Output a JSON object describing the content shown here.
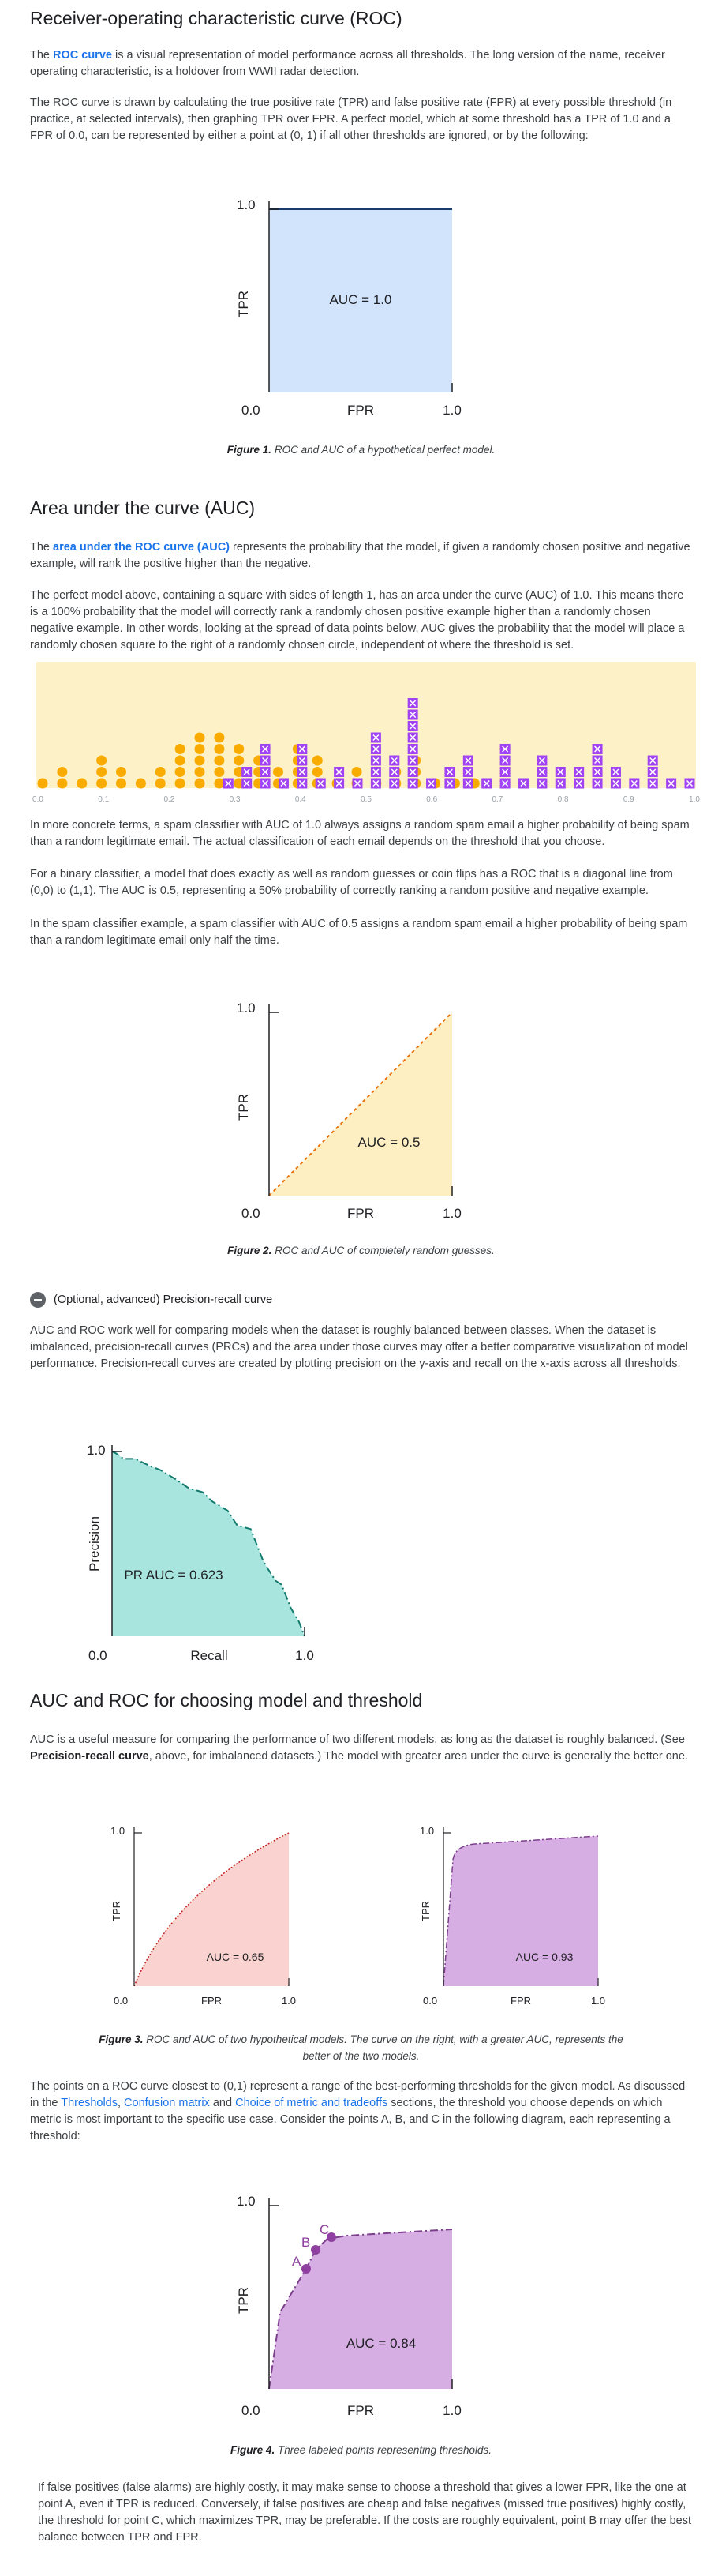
{
  "section_roc": {
    "heading": "Receiver-operating characteristic curve (ROC)",
    "p1_pre": "The ",
    "p1_link": "ROC curve",
    "p1_post": " is a visual representation of model performance across all thresholds. The long version of the name, receiver operating characteristic, is a holdover from WWII radar detection.",
    "p2": "The ROC curve is drawn by calculating the true positive rate (TPR) and false positive rate (FPR) at every possible threshold (in practice, at selected intervals), then graphing TPR over FPR. A perfect model, which at some threshold has a TPR of 1.0 and a FPR of 0.0, can be represented by either a point at (0, 1) if all other thresholds are ignored, or by the following:"
  },
  "figure1": {
    "caption_bold": "Figure 1.",
    "caption_text": " ROC and AUC of a hypothetical perfect model.",
    "ylabel": "TPR",
    "xlabel": "FPR",
    "y_top": "1.0",
    "origin": "0.0",
    "x_right": "1.0",
    "annotation": "AUC = 1.0",
    "fill": "#d2e3fc",
    "line": "#1a3b6e"
  },
  "section_auc": {
    "heading": "Area under the curve (AUC)",
    "p1_pre": "The ",
    "p1_link": "area under the ROC curve (AUC)",
    "p1_post": " represents the probability that the model, if given a randomly chosen positive and negative example, will rank the positive higher than the negative.",
    "p2": "The perfect model above, containing a square with sides of length 1, has an area under the curve (AUC) of 1.0. This means there is a 100% probability that the model will correctly rank a randomly chosen positive example higher than a randomly chosen negative example. In other words, looking at the spread of data points below, AUC gives the probability that the model will place a randomly chosen square to the right of a randomly chosen circle, independent of where the threshold is set.",
    "p3": "In more concrete terms, a spam classifier with AUC of 1.0 always assigns a random spam email a higher probability of being spam than a random legitimate email. The actual classification of each email depends on the threshold that you choose.",
    "p4": "For a binary classifier, a model that does exactly as well as random guesses or coin flips has a ROC that is a diagonal line from (0,0) to (1,1). The AUC is 0.5, representing a 50% probability of correctly ranking a random positive and negative example.",
    "p5": "In the spam classifier example, a spam classifier with AUC of 0.5 assigns a random spam email a higher probability of being spam than a random legitimate email only half the time."
  },
  "dotplot": {
    "ticks": [
      "0.0",
      "0.1",
      "0.2",
      "0.3",
      "0.4",
      "0.5",
      "0.6",
      "0.7",
      "0.8",
      "0.9",
      "1.0"
    ],
    "background": "#fdf1c7",
    "circle_color": "#f9ab00",
    "square_color": "#a142f4",
    "circle_columns": [
      1,
      2,
      1,
      3,
      2,
      1,
      2,
      4,
      5,
      5,
      4,
      3,
      2,
      4,
      3,
      1,
      2,
      1,
      2,
      3,
      1,
      1,
      1
    ],
    "square_columns": [
      1,
      2,
      4,
      1,
      4,
      1,
      2,
      1,
      5,
      3,
      8,
      1,
      2,
      3,
      1,
      4,
      1,
      3,
      2,
      2,
      4,
      2,
      1,
      3,
      1,
      1
    ]
  },
  "figure2": {
    "caption_bold": "Figure 2.",
    "caption_text": " ROC and AUC of completely random guesses.",
    "ylabel": "TPR",
    "xlabel": "FPR",
    "y_top": "1.0",
    "origin": "0.0",
    "x_right": "1.0",
    "annotation": "AUC = 0.5",
    "fill": "#feefc3",
    "line": "#e8710a"
  },
  "details": {
    "label": "(Optional, advanced) Precision-recall curve",
    "p1": "AUC and ROC work well for comparing models when the dataset is roughly balanced between classes. When the dataset is imbalanced, precision-recall curves (PRCs) and the area under those curves may offer a better comparative visualization of model performance. Precision-recall curves are created by plotting precision on the y-axis and recall on the x-axis across all thresholds."
  },
  "figure_pr": {
    "ylabel": "Precision",
    "xlabel": "Recall",
    "y_top": "1.0",
    "origin": "0.0",
    "x_right": "1.0",
    "annotation": "PR AUC = 0.623",
    "fill": "#a8e5df",
    "line": "#137a6e",
    "chart_data": {
      "type": "area",
      "x": [
        0.0,
        0.02,
        0.06,
        0.12,
        0.2,
        0.25,
        0.33,
        0.4,
        0.47,
        0.52,
        0.6,
        0.65,
        0.72,
        0.75,
        0.78,
        0.8,
        0.85,
        0.88,
        0.93,
        0.97,
        1.0
      ],
      "y": [
        1.0,
        0.99,
        0.96,
        0.96,
        0.92,
        0.9,
        0.85,
        0.8,
        0.78,
        0.73,
        0.68,
        0.6,
        0.58,
        0.5,
        0.42,
        0.38,
        0.3,
        0.28,
        0.15,
        0.08,
        0.0
      ],
      "xlim": [
        0,
        1
      ],
      "ylim": [
        0,
        1
      ]
    }
  },
  "section_choose": {
    "heading": "AUC and ROC for choosing model and threshold",
    "p1_pre": "AUC is a useful measure for comparing the performance of two different models, as long as the dataset is roughly balanced. (See ",
    "p1_bold": "Precision-recall curve",
    "p1_post": ", above, for imbalanced datasets.) The model with greater area under the curve is generally the better one.",
    "p2_a": "The points on a ROC curve closest to (0,1) represent a range of the best-performing thresholds for the given model. As discussed in the ",
    "p2_link1": "Thresholds",
    "p2_b": ", ",
    "p2_link2": "Confusion matrix",
    "p2_c": " and ",
    "p2_link3": "Choice of metric and tradeoffs",
    "p2_d": " sections, the threshold you choose depends on which metric is most important to the specific use case. Consider the points A, B, and C in the following diagram, each representing a threshold:",
    "p3": "If false positives (false alarms) are highly costly, it may make sense to choose a threshold that gives a lower FPR, like the one at point A, even if TPR is reduced. Conversely, if false positives are cheap and false negatives (missed true positives) highly costly, the threshold for point C, which maximizes TPR, may be preferable. If the costs are roughly equivalent, point B may offer the best balance between TPR and FPR."
  },
  "figure3": {
    "caption_bold": "Figure 3.",
    "caption_text": " ROC and AUC of two hypothetical models. The curve on the right, with a greater AUC, represents the better of the two models.",
    "left": {
      "ylabel": "TPR",
      "xlabel": "FPR",
      "y_top": "1.0",
      "origin": "0.0",
      "x_right": "1.0",
      "annotation": "AUC = 0.65",
      "fill": "#fad2cf",
      "line": "#c5221f"
    },
    "right": {
      "ylabel": "TPR",
      "xlabel": "FPR",
      "y_top": "1.0",
      "origin": "0.0",
      "x_right": "1.0",
      "annotation": "AUC = 0.93",
      "fill": "#d7aee3",
      "line": "#7b3f8c"
    }
  },
  "figure4": {
    "caption_bold": "Figure 4.",
    "caption_text": " Three labeled points representing thresholds.",
    "ylabel": "TPR",
    "xlabel": "FPR",
    "y_top": "1.0",
    "origin": "0.0",
    "x_right": "1.0",
    "annotation": "AUC = 0.84",
    "point_labels": [
      "A",
      "B",
      "C"
    ],
    "fill": "#d7aee3",
    "line": "#7b3f8c",
    "point_color": "#8e3fa0"
  }
}
